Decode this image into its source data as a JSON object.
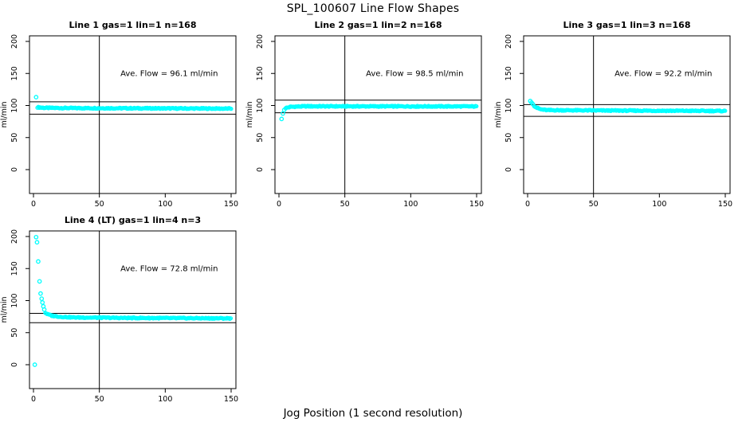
{
  "figure": {
    "title": "SPL_100607  Line Flow Shapes",
    "x_axis_label": "Jog Position (1 second resolution)",
    "background_color": "#ffffff",
    "point_color": "#00ffff",
    "axis_color": "#000000",
    "text_color": "#000000"
  },
  "chart_data": [
    {
      "type": "scatter",
      "title": "Line 1 gas=1 lin=1 n=168",
      "n": 168,
      "annotation": "Ave. Flow =  96.1  ml/min",
      "ave_flow_ml_min": 96.1,
      "ylabel": "ml/min",
      "xticks": [
        0,
        50,
        100,
        150
      ],
      "yticks": [
        0,
        50,
        100,
        150,
        200
      ],
      "xlim": [
        -3,
        154
      ],
      "ylim": [
        -38,
        209
      ],
      "vline_x": 50,
      "hlines": [
        105.7,
        86.5
      ],
      "lead_points": [
        [
          2,
          113
        ]
      ],
      "band_path": [
        [
          3,
          97.3
        ],
        [
          8,
          96.4
        ],
        [
          30,
          96.0
        ],
        [
          150,
          95.2
        ]
      ]
    },
    {
      "type": "scatter",
      "title": "Line 2 gas=1 lin=2 n=168",
      "n": 168,
      "annotation": "Ave. Flow =  98.5  ml/min",
      "ave_flow_ml_min": 98.5,
      "ylabel": "ml/min",
      "xticks": [
        0,
        50,
        100,
        150
      ],
      "yticks": [
        0,
        50,
        100,
        150,
        200
      ],
      "xlim": [
        -3,
        154
      ],
      "ylim": [
        -38,
        209
      ],
      "vline_x": 50,
      "hlines": [
        108.4,
        88.7
      ],
      "lead_points": [
        [
          2,
          79
        ],
        [
          3,
          87.5
        ],
        [
          4,
          93
        ]
      ],
      "band_path": [
        [
          5,
          96
        ],
        [
          9,
          98
        ],
        [
          20,
          98.8
        ],
        [
          150,
          98.6
        ]
      ]
    },
    {
      "type": "scatter",
      "title": "Line 3 gas=1 lin=3 n=168",
      "n": 168,
      "annotation": "Ave. Flow =  92.2  ml/min",
      "ave_flow_ml_min": 92.2,
      "ylabel": "ml/min",
      "xticks": [
        0,
        50,
        100,
        150
      ],
      "yticks": [
        0,
        50,
        100,
        150,
        200
      ],
      "xlim": [
        -3,
        154
      ],
      "ylim": [
        -38,
        209
      ],
      "vline_x": 50,
      "hlines": [
        101.4,
        83.0
      ],
      "lead_points": [
        [
          2,
          107
        ],
        [
          3,
          104.5
        ],
        [
          4,
          102
        ]
      ],
      "band_path": [
        [
          5,
          99.5
        ],
        [
          7,
          96.5
        ],
        [
          10,
          94
        ],
        [
          15,
          92.8
        ],
        [
          60,
          92.2
        ],
        [
          150,
          91.5
        ]
      ]
    },
    {
      "type": "scatter",
      "title": "Line 4 (LT) gas=1 lin=4 n=3",
      "n": 3,
      "annotation": "Ave. Flow =  72.8  ml/min",
      "ave_flow_ml_min": 72.8,
      "ylabel": "ml/min",
      "xticks": [
        0,
        50,
        100,
        150
      ],
      "yticks": [
        0,
        50,
        100,
        150,
        200
      ],
      "xlim": [
        -3,
        154
      ],
      "ylim": [
        -38,
        209
      ],
      "vline_x": 50,
      "hlines": [
        80.1,
        65.5
      ],
      "lead_points": [
        [
          1,
          0
        ],
        [
          2,
          199
        ],
        [
          2.7,
          191
        ],
        [
          3.6,
          161
        ],
        [
          4.6,
          130
        ],
        [
          5.4,
          111
        ],
        [
          6.2,
          103
        ],
        [
          6.8,
          97
        ],
        [
          7.5,
          91
        ],
        [
          8.2,
          86
        ]
      ],
      "band_path": [
        [
          9,
          81
        ],
        [
          11,
          78.5
        ],
        [
          14,
          76.5
        ],
        [
          20,
          74.8
        ],
        [
          30,
          73.8
        ],
        [
          70,
          73.0
        ],
        [
          150,
          72.3
        ]
      ]
    }
  ]
}
